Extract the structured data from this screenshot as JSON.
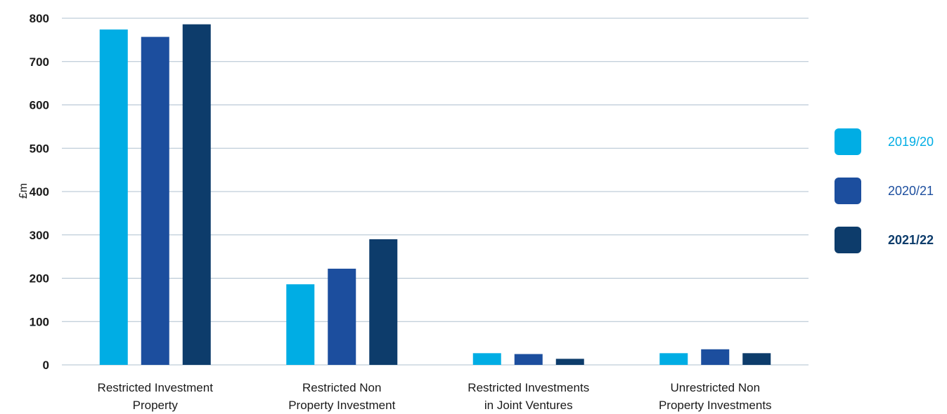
{
  "chart_data": {
    "type": "bar",
    "ylabel": "£m",
    "ylim": [
      0,
      800
    ],
    "yticks": [
      0,
      100,
      200,
      300,
      400,
      500,
      600,
      700,
      800
    ],
    "grid": true,
    "legend_position": "right",
    "categories": [
      [
        "Restricted Investment",
        "Property"
      ],
      [
        "Restricted Non",
        "Property Investment"
      ],
      [
        "Restricted Investments",
        "in Joint Ventures"
      ],
      [
        "Unrestricted Non",
        "Property Investments"
      ]
    ],
    "series": [
      {
        "name": "2019/20",
        "color": "#00ADE4",
        "values": [
          774,
          186,
          27,
          27
        ]
      },
      {
        "name": "2020/21",
        "color": "#1C4E9E",
        "values": [
          757,
          222,
          25,
          36
        ]
      },
      {
        "name": "2021/22",
        "color": "#0D3C6B",
        "values": [
          786,
          290,
          14,
          27
        ],
        "bold": true
      }
    ]
  }
}
